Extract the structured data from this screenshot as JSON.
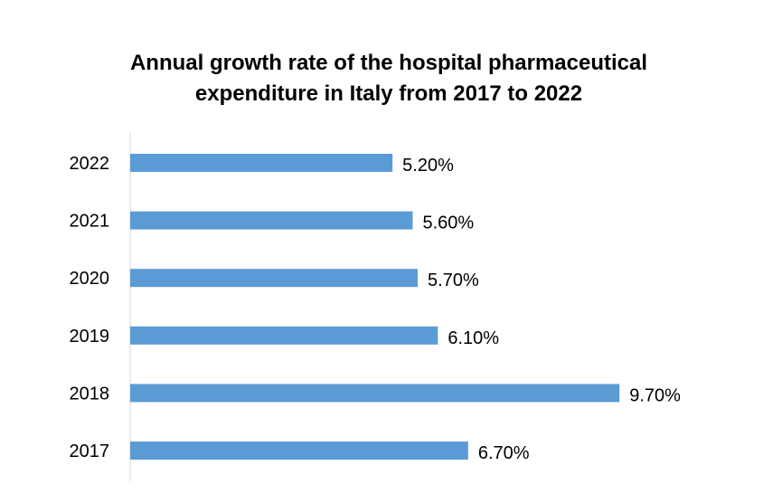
{
  "chart_data": {
    "type": "bar",
    "orientation": "horizontal",
    "title_lines": [
      "Annual growth rate of the hospital pharmaceutical",
      "expenditure in Italy from 2017 to 2022"
    ],
    "categories": [
      "2022",
      "2021",
      "2020",
      "2019",
      "2018",
      "2017"
    ],
    "values": [
      5.2,
      5.6,
      5.7,
      6.1,
      9.7,
      6.7
    ],
    "value_labels": [
      "5.20%",
      "5.60%",
      "5.70%",
      "6.10%",
      "9.70%",
      "6.70%"
    ],
    "xlim": [
      0,
      10
    ],
    "grid": false,
    "legend": "none",
    "bar_color": "#5b9bd5",
    "axis_color": "#d9d9d9"
  }
}
